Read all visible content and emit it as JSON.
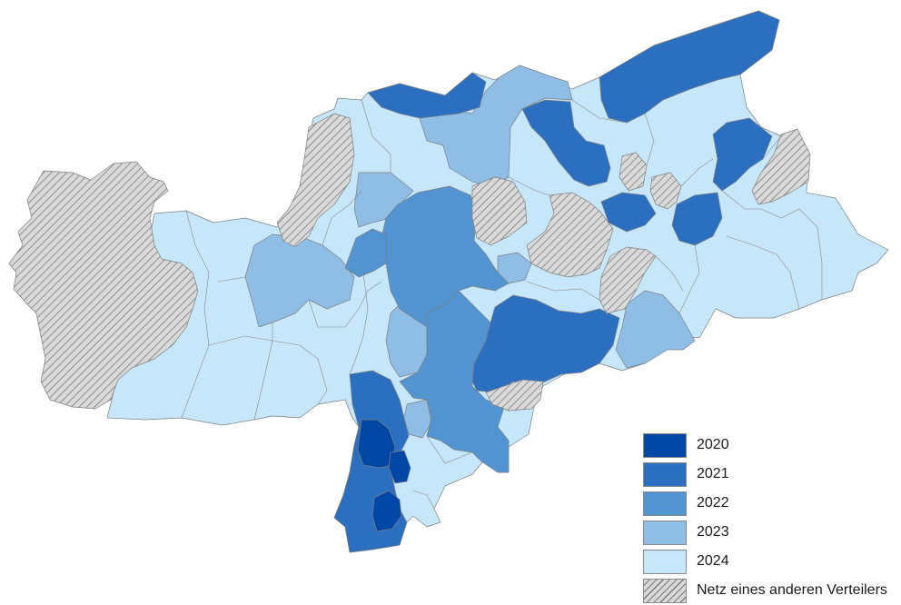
{
  "colors": {
    "2020": "#0047a6",
    "2021": "#2a6fc0",
    "2022": "#5293d1",
    "2023": "#8ebde6",
    "2024": "#c6e6f9",
    "other": "hatched-grey",
    "border": "#7f7f7f"
  },
  "legend": {
    "items": [
      {
        "key": "2020",
        "label": "2020"
      },
      {
        "key": "2021",
        "label": "2021"
      },
      {
        "key": "2022",
        "label": "2022"
      },
      {
        "key": "2023",
        "label": "2023"
      },
      {
        "key": "2024",
        "label": "2024"
      },
      {
        "key": "other",
        "label": "Netz eines anderen Verteilers"
      }
    ]
  }
}
